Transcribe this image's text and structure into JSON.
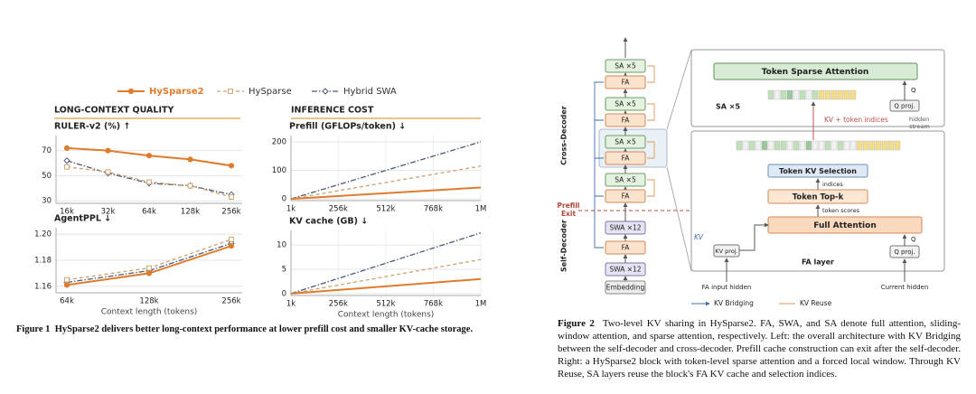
{
  "chart_data": [
    {
      "type": "line",
      "title": "RULER-v2 (%) ↑",
      "categories": [
        "16k",
        "32k",
        "64k",
        "128k",
        "256k"
      ],
      "ylim": [
        28,
        82
      ],
      "yticks": [
        30,
        50,
        70
      ],
      "grid": true,
      "series": [
        {
          "name": "HySparse2",
          "color": "#e07b2c",
          "linestyle": "solid",
          "marker": "circle",
          "values": [
            72,
            70,
            66,
            63,
            58
          ]
        },
        {
          "name": "HySparse",
          "color": "#c9a46f",
          "linestyle": "dashed",
          "marker": "square",
          "values": [
            57,
            53,
            45,
            42,
            33
          ]
        },
        {
          "name": "Hybrid SWA",
          "color": "#4b5a78",
          "linestyle": "dashdot",
          "marker": "diamond",
          "values": [
            62,
            52,
            44,
            42,
            35
          ]
        }
      ]
    },
    {
      "type": "line",
      "title": "AgentPPL ↓",
      "xlabel": "Context length (tokens)",
      "categories": [
        "64k",
        "128k",
        "256k"
      ],
      "ylim": [
        1.155,
        1.205
      ],
      "yticks": [
        1.16,
        1.18,
        {
          "value": 1.2,
          "label": "1.20"
        }
      ],
      "grid": true,
      "series": [
        {
          "name": "HySparse2",
          "color": "#e07b2c",
          "linestyle": "solid",
          "marker": "circle",
          "values": [
            1.161,
            1.17,
            1.191
          ]
        },
        {
          "name": "HySparse",
          "color": "#c9a46f",
          "linestyle": "dashed",
          "marker": "square",
          "values": [
            1.165,
            1.174,
            1.196
          ]
        },
        {
          "name": "Hybrid SWA",
          "color": "#4b5a78",
          "linestyle": "dashdot",
          "marker": "diamond",
          "values": [
            1.163,
            1.172,
            1.193
          ]
        }
      ]
    },
    {
      "type": "line",
      "title": "Prefill (GFLOPs/token) ↓",
      "x": [
        1,
        1024
      ],
      "xlim": [
        1,
        1024
      ],
      "xticks": [
        {
          "value": 1,
          "label": "1k"
        },
        {
          "value": 256,
          "label": "256k"
        },
        {
          "value": 512,
          "label": "512k"
        },
        {
          "value": 768,
          "label": "768k"
        },
        {
          "value": 1024,
          "label": "1M"
        }
      ],
      "ylim": [
        -6,
        222
      ],
      "yticks": [
        0,
        100,
        200
      ],
      "grid": true,
      "series": [
        {
          "name": "HySparse2",
          "color": "#e07b2c",
          "linestyle": "solid",
          "values": [
            0,
            40
          ]
        },
        {
          "name": "HySparse",
          "color": "#c9a46f",
          "linestyle": "dashed",
          "values": [
            0,
            115
          ]
        },
        {
          "name": "Hybrid SWA",
          "color": "#4b5a78",
          "linestyle": "dashdot",
          "values": [
            0,
            200
          ]
        }
      ]
    },
    {
      "type": "line",
      "title": "KV cache (GB) ↓",
      "xlabel": "Context length (tokens)",
      "x": [
        1,
        1024
      ],
      "xlim": [
        1,
        1024
      ],
      "xticks": [
        {
          "value": 1,
          "label": "1k"
        },
        {
          "value": 256,
          "label": "256k"
        },
        {
          "value": 512,
          "label": "512k"
        },
        {
          "value": 768,
          "label": "768k"
        },
        {
          "value": 1024,
          "label": "1M"
        }
      ],
      "ylim": [
        -0.4,
        13
      ],
      "yticks": [
        0,
        5,
        10
      ],
      "grid": true,
      "series": [
        {
          "name": "HySparse2",
          "color": "#e07b2c",
          "linestyle": "solid",
          "values": [
            0,
            3
          ]
        },
        {
          "name": "HySparse",
          "color": "#c9a46f",
          "linestyle": "dashed",
          "values": [
            0,
            7
          ]
        },
        {
          "name": "Hybrid SWA",
          "color": "#4b5a78",
          "linestyle": "dashdot",
          "values": [
            0,
            12.5
          ]
        }
      ]
    }
  ],
  "sections": [
    "LONG-CONTEXT QUALITY",
    "INFERENCE COST"
  ],
  "figure1_caption": {
    "label": "Figure 1",
    "text": "HySparse2 delivers better long-context performance at lower prefill cost and smaller KV-cache storage."
  },
  "figure2": {
    "left_stack": [
      "SA ×5",
      "FA",
      "SA ×5",
      "FA",
      "SA ×5",
      "FA",
      "SA ×5",
      "FA",
      "SWA ×12",
      "FA",
      "SWA ×12",
      "Embedding"
    ],
    "group_labels": [
      "Cross-Decoder",
      "Self-Decoder"
    ],
    "prefill_exit": [
      "Prefill",
      "Exit"
    ],
    "legend": [
      "KV Bridging",
      "KV Reuse"
    ],
    "right": {
      "token_sparse_attention": "Token Sparse Attention",
      "sa_label": "SA ×5",
      "q_proj_top": "Q proj.",
      "q_top": "Q",
      "kv_token_indices": "KV + token indices",
      "hidden_stream": [
        "hidden",
        "stream"
      ],
      "token_kv_selection": "Token KV Selection",
      "indices": "indices",
      "token_topk": "Token Top-k",
      "token_scores": "token scores",
      "full_attention": "Full Attention",
      "kv": "KV",
      "kv_proj": "KV proj.",
      "q_proj_bottom": "Q proj.",
      "q_bottom": "Q",
      "fa_layer": "FA layer",
      "fa_input_hidden": "FA input hidden",
      "current_hidden": "Current hidden"
    },
    "caption": {
      "label": "Figure 2",
      "text": "Two-level KV sharing in HySparse2. FA, SWA, and SA denote full attention, sliding-window attention, and sparse attention, respectively. Left: the overall architecture with KV Bridging between the self-decoder and cross-decoder. Prefill cache construction can exit after the self-decoder. Right: a HySparse2 block with token-level sparse attention and a forced local window. Through KV Reuse, SA layers reuse the block's FA KV cache and selection indices."
    }
  }
}
